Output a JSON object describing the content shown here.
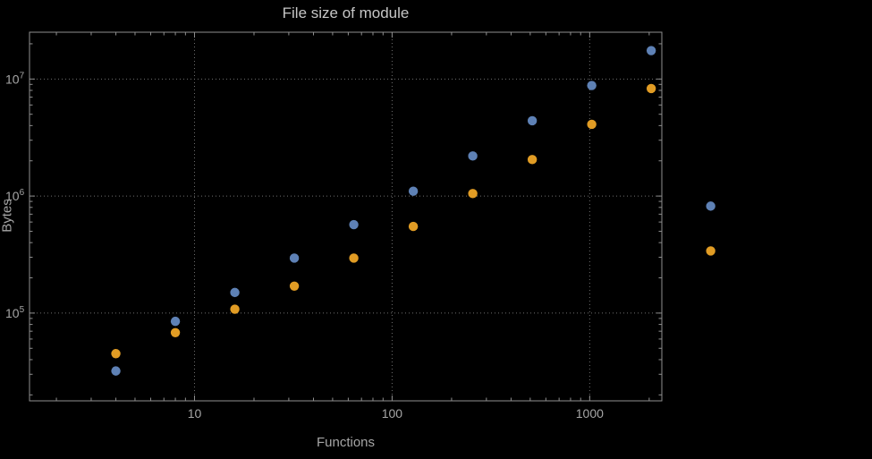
{
  "title": "File size of module",
  "style": {
    "background": "#000000",
    "frame_color": "#8f8f8f",
    "grid_color": "#6f6f6f",
    "label_color": "#a6a6a6",
    "title_color": "#c6c6c6"
  },
  "chart_data": {
    "type": "scatter",
    "title": "File size of module",
    "xlabel": "Functions",
    "ylabel": "Bytes",
    "x_scale": "log",
    "y_scale": "log",
    "grid": "dotted, at decade lines",
    "legend": "none",
    "x": [
      4,
      8,
      16,
      32,
      64,
      128,
      256,
      512,
      1024,
      2048,
      4096
    ],
    "series": [
      {
        "name": "blue",
        "color": "#5e81b5",
        "values": [
          32000,
          85000,
          150000,
          295000,
          570000,
          1100000,
          2200000,
          4400000,
          8800000,
          17500000,
          820000
        ]
      },
      {
        "name": "orange",
        "color": "#e19c24",
        "values": [
          45000,
          68000,
          108000,
          170000,
          295000,
          550000,
          1050000,
          2050000,
          4100000,
          8300000,
          340000
        ]
      }
    ],
    "x_ticks": [
      {
        "label": "10",
        "value": 10
      },
      {
        "label": "100",
        "value": 100
      },
      {
        "label": "1000",
        "value": 1000
      }
    ],
    "y_ticks": [
      {
        "base": "10",
        "exp": "5",
        "value": 100000
      },
      {
        "base": "10",
        "exp": "6",
        "value": 1000000
      },
      {
        "base": "10",
        "exp": "7",
        "value": 10000000
      }
    ],
    "x_log_range": [
      0.165,
      3.365
    ],
    "y_log_range": [
      4.25,
      7.4
    ]
  }
}
